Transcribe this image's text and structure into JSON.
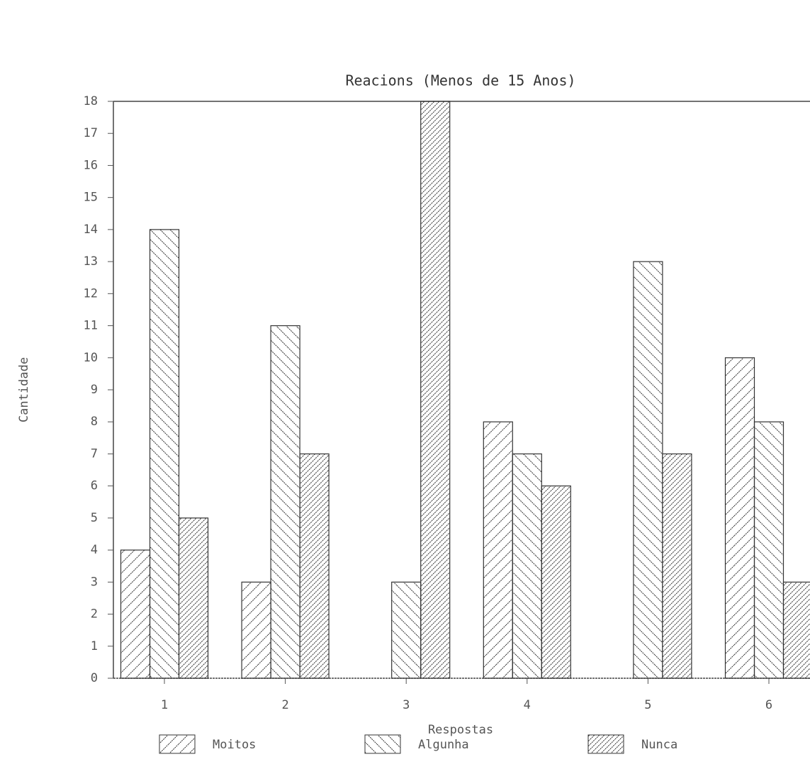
{
  "chart_data": {
    "type": "bar",
    "title": "Reacions (Menos de 15 Anos)",
    "x_label": "Respostas",
    "y_label": "Cantidade",
    "categories": [
      "1",
      "2",
      "3",
      "4",
      "5",
      "6"
    ],
    "series": [
      {
        "name": "Moitos",
        "color": "#333333",
        "values": [
          4,
          3,
          0,
          8,
          0,
          10
        ]
      },
      {
        "name": "Algunha",
        "color": "#333333",
        "values": [
          14,
          11,
          3,
          7,
          13,
          8
        ]
      },
      {
        "name": "Nunca",
        "color": "#333333",
        "values": [
          5,
          7,
          18,
          6,
          7,
          3
        ]
      }
    ],
    "ylim": [
      0,
      18
    ],
    "yticks": [
      0,
      1,
      2,
      3,
      4,
      5,
      6,
      7,
      8,
      9,
      10,
      11,
      12,
      13,
      14,
      15,
      16,
      17,
      18
    ],
    "grid": false
  }
}
